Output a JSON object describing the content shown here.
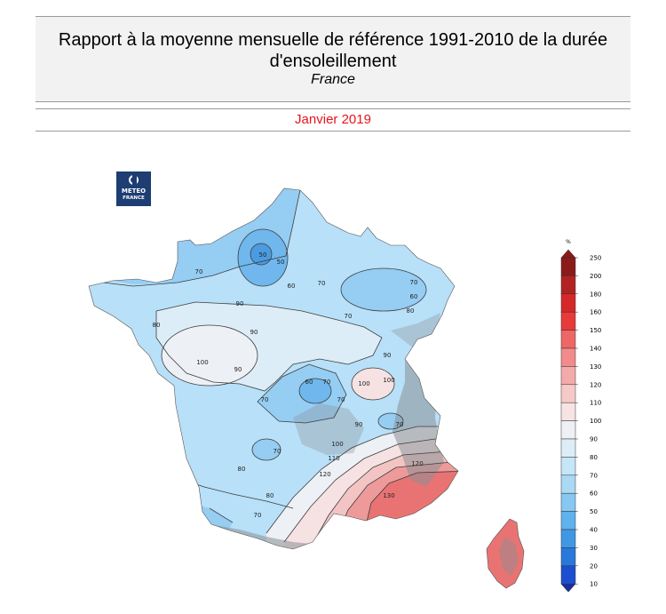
{
  "header": {
    "title_line1": "Rapport à la moyenne mensuelle de référence 1991-2010 de la durée",
    "title_line2": "d'ensoleillement",
    "subtitle": "France",
    "date": "Janvier 2019",
    "date_color": "#e8141b"
  },
  "logo": {
    "line1": "METEO",
    "line2": "FRANCE"
  },
  "legend": {
    "unit": "%",
    "ticks": [
      "250",
      "200",
      "180",
      "160",
      "150",
      "140",
      "130",
      "120",
      "110",
      "100",
      "90",
      "80",
      "70",
      "60",
      "50",
      "40",
      "30",
      "20",
      "10"
    ],
    "colors": [
      "#8b1a1a",
      "#b22222",
      "#d62828",
      "#e83a3a",
      "#ee6666",
      "#f28b8b",
      "#f4aaaa",
      "#f6c9c9",
      "#f7e3e3",
      "#eef0f4",
      "#dcedf8",
      "#c6e6f8",
      "#a9d9f5",
      "#86c8f1",
      "#5fb2ec",
      "#3f98e4",
      "#2978db",
      "#1c4fd0",
      "#1a2f9e"
    ]
  },
  "map": {
    "contour_labels": [
      "50",
      "60",
      "70",
      "80",
      "90",
      "100",
      "110",
      "120",
      "130"
    ],
    "colors": {
      "under_50": "#4a9be0",
      "r50_60": "#6fb7ec",
      "r60_70": "#95cdf3",
      "r70_80": "#b8e0f8",
      "r80_90": "#dcedf8",
      "r90_100": "#edf0f5",
      "r100_110": "#f6e2e2",
      "r110_120": "#f3c4c4",
      "r120_130": "#ee9a9a",
      "over_130": "#e97373",
      "relief": "#8a8f94"
    }
  }
}
